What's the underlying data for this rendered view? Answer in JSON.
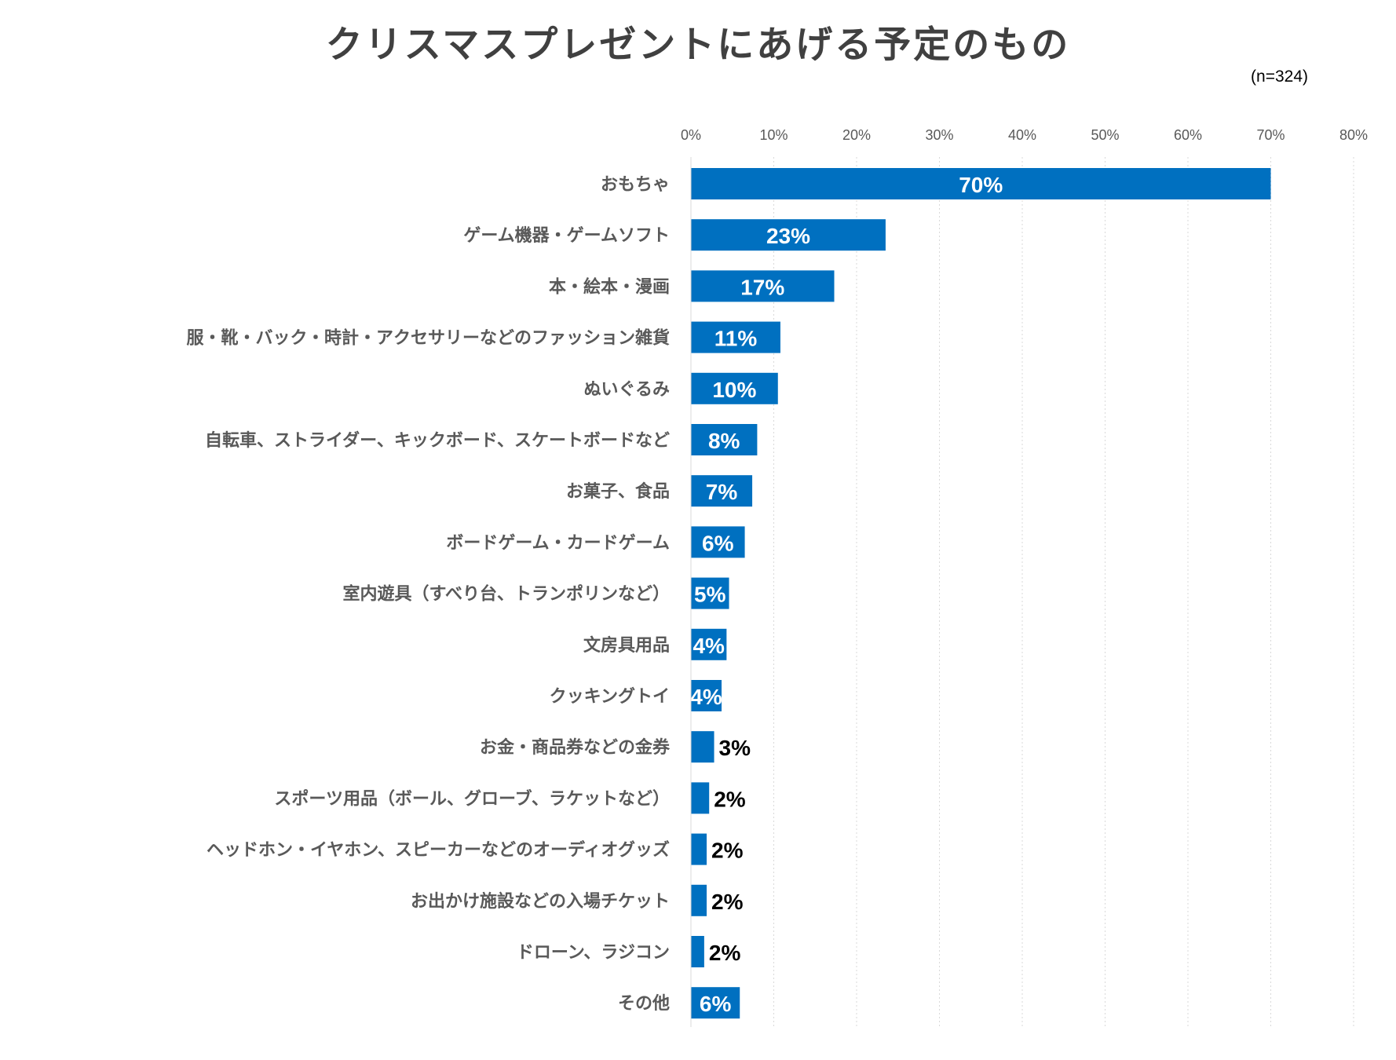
{
  "chart_data": {
    "type": "bar",
    "orientation": "horizontal",
    "title": "クリスマスプレゼントにあげる予定のもの",
    "subtitle": "(n=324)",
    "categories": [
      "おもちゃ",
      "ゲーム機器・ゲームソフト",
      "本・絵本・漫画",
      "服・靴・バック・時計・アクセサリーなどのファッション雑貨",
      "ぬいぐるみ",
      "自転車、ストライダー、キックボード、スケートボードなど",
      "お菓子、食品",
      "ボードゲーム・カードゲーム",
      "室内遊具（すべり台、トランポリンなど）",
      "文房具用品",
      "クッキングトイ",
      "お金・商品券などの金券",
      "スポーツ用品（ボール、グローブ、ラケットなど）",
      "ヘッドホン・イヤホン、スピーカーなどのオーディオグッズ",
      "お出かけ施設などの入場チケット",
      "ドローン、ラジコン",
      "その他"
    ],
    "values": [
      70,
      23.5,
      17.3,
      10.8,
      10.5,
      8,
      7.4,
      6.5,
      4.6,
      4.3,
      3.7,
      2.8,
      2.2,
      1.9,
      1.9,
      1.6,
      5.9
    ],
    "value_labels": [
      "70%",
      "23%",
      "17%",
      "11%",
      "10%",
      "8%",
      "7%",
      "6%",
      "5%",
      "4%",
      "4%",
      "3%",
      "2%",
      "2%",
      "2%",
      "2%",
      "6%"
    ],
    "xlim": [
      0,
      80
    ],
    "xticks": [
      0,
      10,
      20,
      30,
      40,
      50,
      60,
      70,
      80
    ],
    "xtick_labels": [
      "0%",
      "10%",
      "20%",
      "30%",
      "40%",
      "50%",
      "60%",
      "70%",
      "80%"
    ],
    "xaxis_position": "top",
    "grid": true,
    "bar_color": "#0070C0",
    "label_inside_color": "#FFFFFF",
    "label_outside_color": "#000000"
  }
}
